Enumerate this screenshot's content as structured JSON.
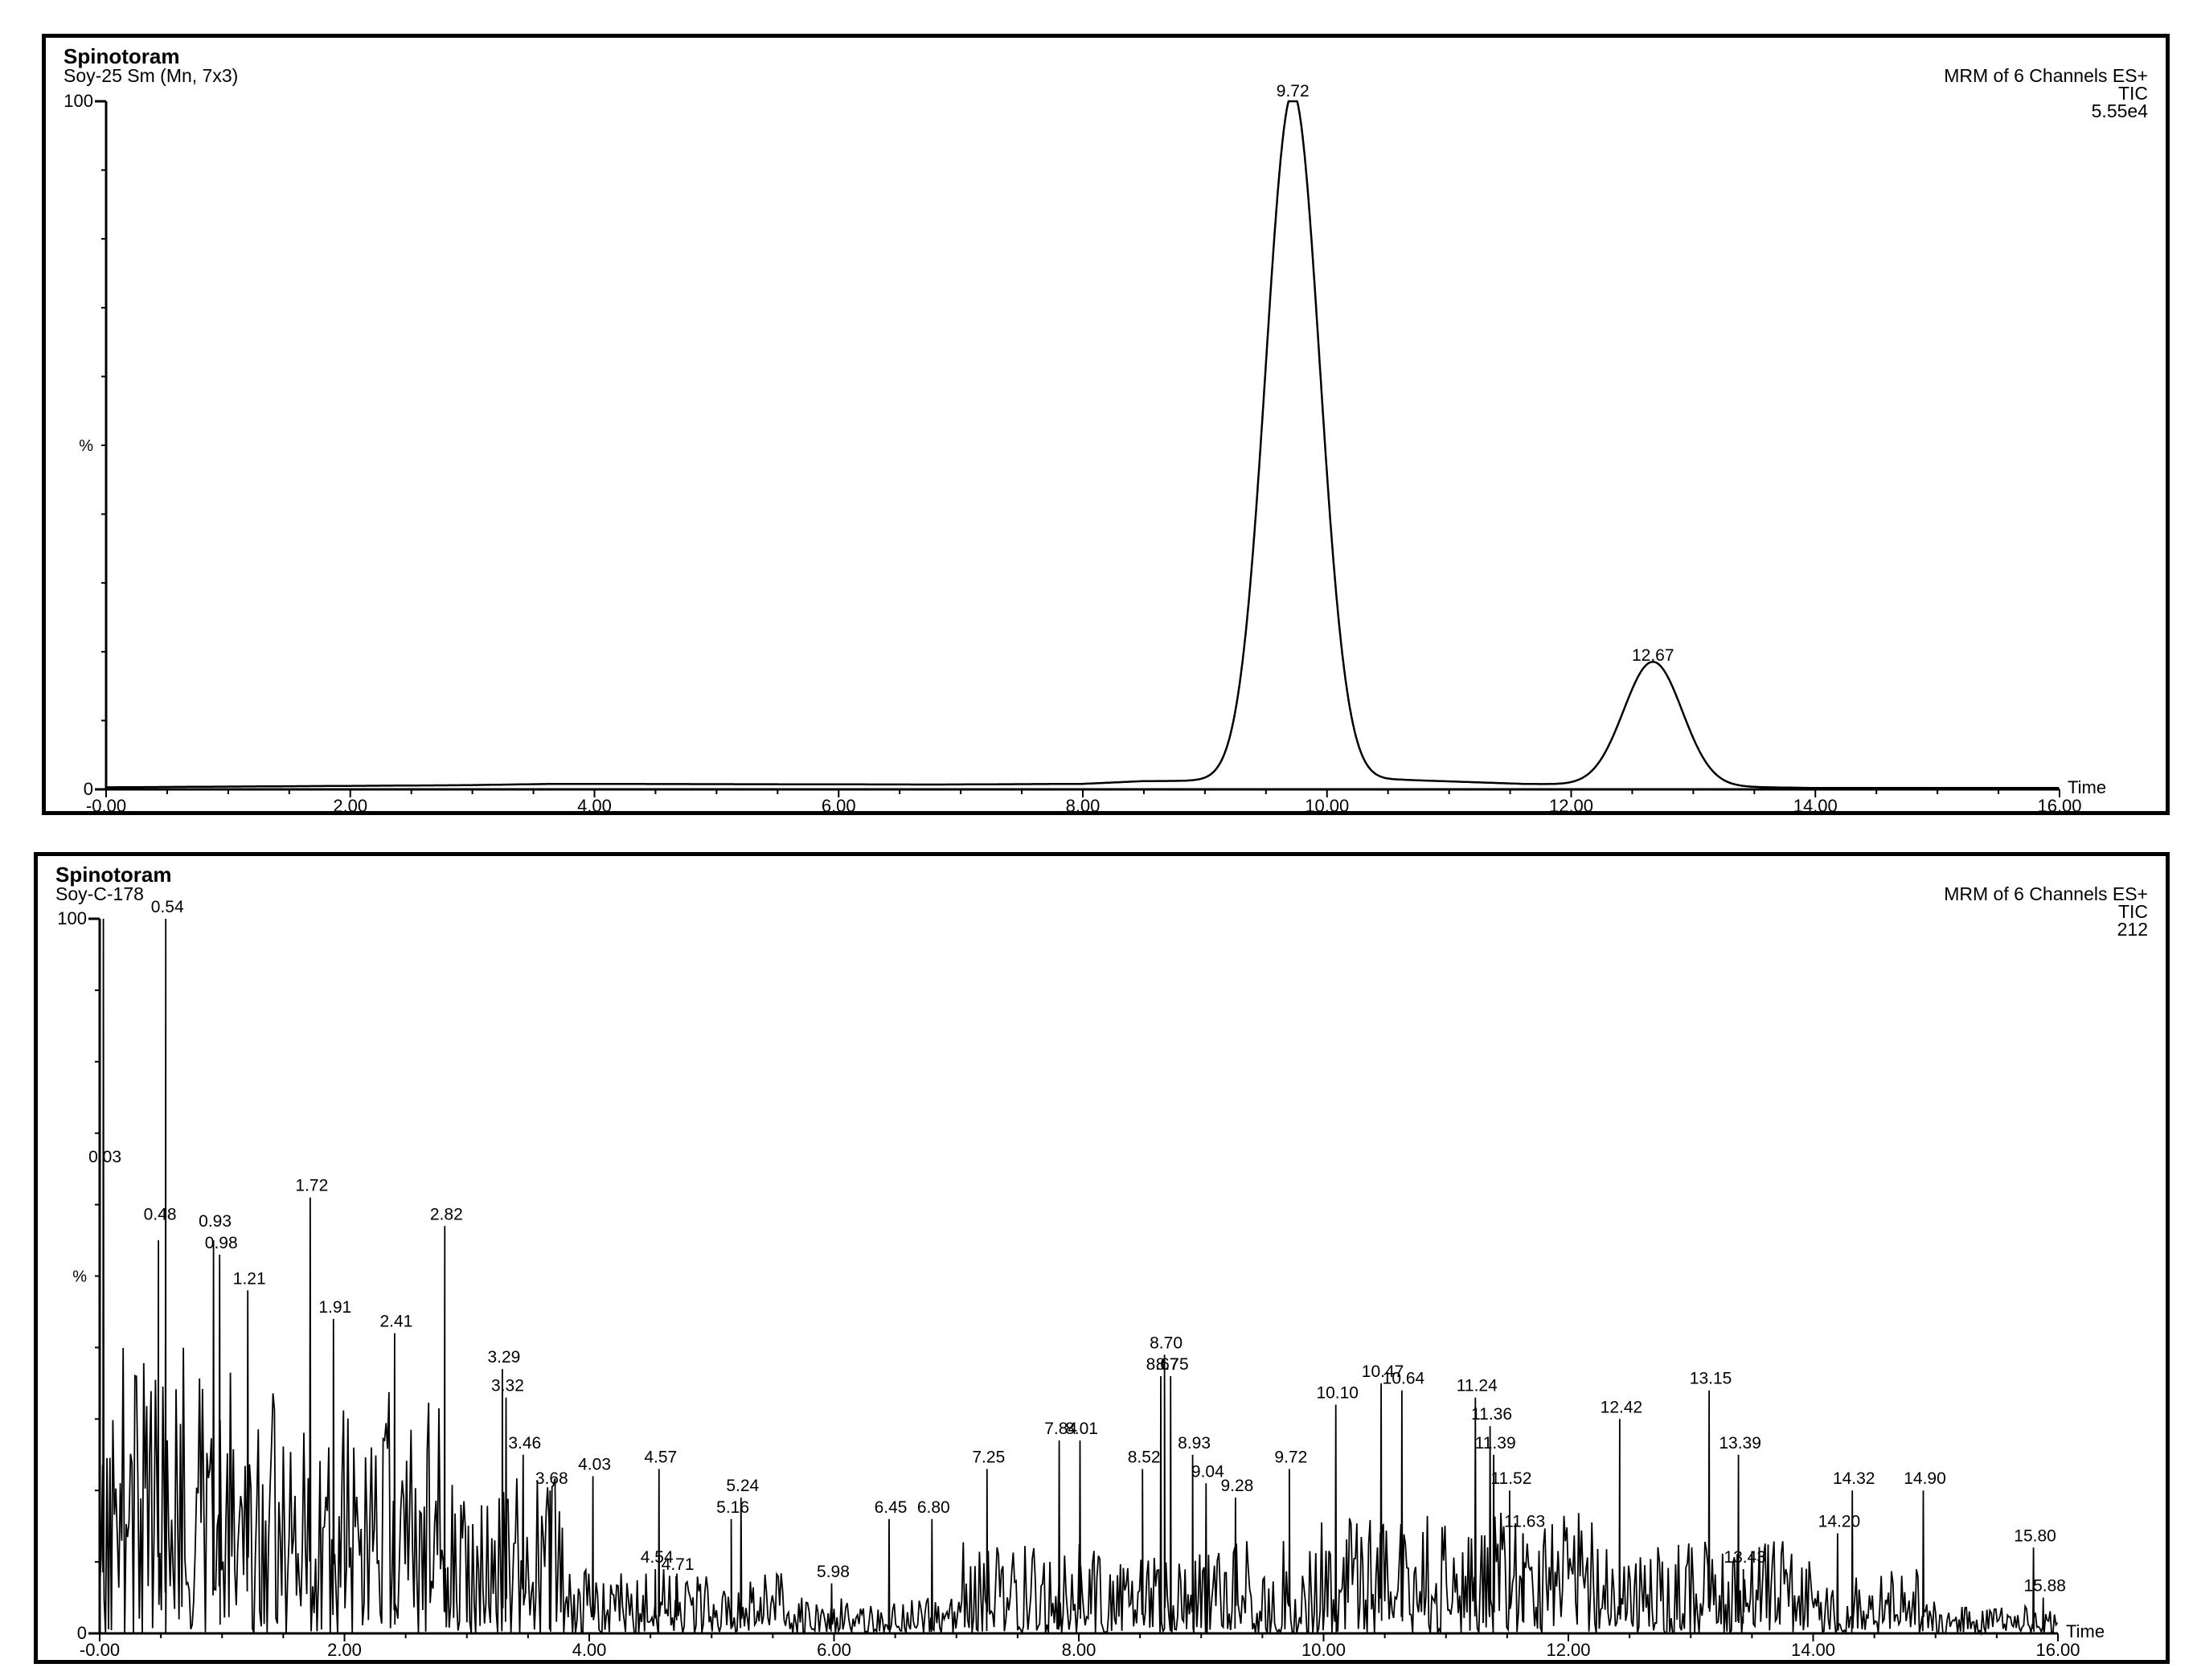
{
  "chart_data": [
    {
      "type": "line",
      "title": "Spinotoram",
      "subtitle": "Soy-25 Sm (Mn, 7x3)",
      "header_right": [
        "MRM of 6 Channels ES+",
        "TIC",
        "5.55e4"
      ],
      "ylabel": "%",
      "xlabel": "Time",
      "xlim": [
        0,
        16
      ],
      "ylim": [
        0,
        100
      ],
      "x_ticks": [
        "-0.00",
        "2.00",
        "4.00",
        "6.00",
        "8.00",
        "10.00",
        "12.00",
        "14.00",
        "16.00"
      ],
      "y_ticks": [
        "0",
        "100"
      ],
      "peaks": [
        {
          "time": 9.72,
          "height": 100,
          "width": 0.22
        },
        {
          "time": 12.67,
          "height": 18,
          "width": 0.24
        }
      ],
      "baseline": [
        [
          0.0,
          0.3
        ],
        [
          2.9,
          0.6
        ],
        [
          3.7,
          0.8
        ],
        [
          6.8,
          0.7
        ],
        [
          8.0,
          0.8
        ],
        [
          8.5,
          1.2
        ],
        [
          10.6,
          1.4
        ],
        [
          11.6,
          0.8
        ],
        [
          14.0,
          0.2
        ],
        [
          16.0,
          0.2
        ]
      ],
      "peak_labels": [
        {
          "text": "9.72",
          "x": 9.72,
          "y": 100
        },
        {
          "text": "12.67",
          "x": 12.67,
          "y": 18
        }
      ]
    },
    {
      "type": "line",
      "title": "Spinotoram",
      "subtitle": "Soy-C-178",
      "header_right": [
        "MRM of 6 Channels ES+",
        "TIC",
        "212"
      ],
      "ylabel": "%",
      "xlabel": "Time",
      "xlim": [
        0,
        16
      ],
      "ylim": [
        0,
        100
      ],
      "x_ticks": [
        "-0.00",
        "2.00",
        "4.00",
        "6.00",
        "8.00",
        "10.00",
        "12.00",
        "14.00",
        "16.00"
      ],
      "y_ticks": [
        "0",
        "100"
      ],
      "peaks": [
        {
          "time": 0.03,
          "height": 100
        },
        {
          "time": 0.48,
          "height": 55
        },
        {
          "time": 0.54,
          "height": 100
        },
        {
          "time": 0.93,
          "height": 55
        },
        {
          "time": 0.98,
          "height": 53
        },
        {
          "time": 1.21,
          "height": 48
        },
        {
          "time": 1.72,
          "height": 61
        },
        {
          "time": 1.91,
          "height": 44
        },
        {
          "time": 2.41,
          "height": 42
        },
        {
          "time": 2.82,
          "height": 57
        },
        {
          "time": 3.29,
          "height": 37
        },
        {
          "time": 3.32,
          "height": 33
        },
        {
          "time": 3.46,
          "height": 25
        },
        {
          "time": 3.68,
          "height": 20
        },
        {
          "time": 4.03,
          "height": 22
        },
        {
          "time": 4.54,
          "height": 9
        },
        {
          "time": 4.57,
          "height": 23
        },
        {
          "time": 4.71,
          "height": 8
        },
        {
          "time": 5.16,
          "height": 16
        },
        {
          "time": 5.24,
          "height": 19
        },
        {
          "time": 5.98,
          "height": 7
        },
        {
          "time": 6.45,
          "height": 16
        },
        {
          "time": 6.8,
          "height": 16
        },
        {
          "time": 7.25,
          "height": 23
        },
        {
          "time": 7.84,
          "height": 27
        },
        {
          "time": 8.01,
          "height": 27
        },
        {
          "time": 8.52,
          "height": 23
        },
        {
          "time": 8.67,
          "height": 36
        },
        {
          "time": 8.7,
          "height": 39
        },
        {
          "time": 8.75,
          "height": 36
        },
        {
          "time": 8.93,
          "height": 25
        },
        {
          "time": 9.04,
          "height": 21
        },
        {
          "time": 9.28,
          "height": 19
        },
        {
          "time": 9.72,
          "height": 23
        },
        {
          "time": 10.1,
          "height": 32
        },
        {
          "time": 10.47,
          "height": 35
        },
        {
          "time": 10.64,
          "height": 34
        },
        {
          "time": 11.24,
          "height": 33
        },
        {
          "time": 11.36,
          "height": 29
        },
        {
          "time": 11.39,
          "height": 25
        },
        {
          "time": 11.52,
          "height": 20
        },
        {
          "time": 11.63,
          "height": 14
        },
        {
          "time": 12.42,
          "height": 30
        },
        {
          "time": 13.15,
          "height": 34
        },
        {
          "time": 13.39,
          "height": 25
        },
        {
          "time": 13.43,
          "height": 9
        },
        {
          "time": 14.2,
          "height": 14
        },
        {
          "time": 14.32,
          "height": 20
        },
        {
          "time": 14.9,
          "height": 20
        },
        {
          "time": 15.8,
          "height": 12
        },
        {
          "time": 15.88,
          "height": 5
        }
      ],
      "peak_labels": [
        {
          "text": "0.03",
          "x": 0.03,
          "y": 65
        },
        {
          "text": "0.48",
          "x": 0.48,
          "y": 57
        },
        {
          "text": "0.54",
          "x": 0.54,
          "y": 100
        },
        {
          "text": "0.93",
          "x": 0.93,
          "y": 56
        },
        {
          "text": "0.98",
          "x": 0.98,
          "y": 53
        },
        {
          "text": "1.21",
          "x": 1.21,
          "y": 48
        },
        {
          "text": "1.72",
          "x": 1.72,
          "y": 61
        },
        {
          "text": "1.91",
          "x": 1.91,
          "y": 44
        },
        {
          "text": "2.41",
          "x": 2.41,
          "y": 42
        },
        {
          "text": "2.82",
          "x": 2.82,
          "y": 57
        },
        {
          "text": "3.29",
          "x": 3.29,
          "y": 37
        },
        {
          "text": "3.32",
          "x": 3.32,
          "y": 33
        },
        {
          "text": "3.46",
          "x": 3.46,
          "y": 25
        },
        {
          "text": "3.68",
          "x": 3.68,
          "y": 20
        },
        {
          "text": "4.03",
          "x": 4.03,
          "y": 22
        },
        {
          "text": "4.54",
          "x": 4.54,
          "y": 9
        },
        {
          "text": "4.57",
          "x": 4.57,
          "y": 23
        },
        {
          "text": "4.71",
          "x": 4.71,
          "y": 8
        },
        {
          "text": "5.16",
          "x": 5.16,
          "y": 16
        },
        {
          "text": "5.24",
          "x": 5.24,
          "y": 19
        },
        {
          "text": "5.98",
          "x": 5.98,
          "y": 7
        },
        {
          "text": "6.45",
          "x": 6.45,
          "y": 16
        },
        {
          "text": "6.80",
          "x": 6.8,
          "y": 16
        },
        {
          "text": "7.25",
          "x": 7.25,
          "y": 23
        },
        {
          "text": "7.84",
          "x": 7.84,
          "y": 27
        },
        {
          "text": "8.01",
          "x": 8.01,
          "y": 27
        },
        {
          "text": "8.52",
          "x": 8.52,
          "y": 23
        },
        {
          "text": "8.67",
          "x": 8.67,
          "y": 36
        },
        {
          "text": "8.70",
          "x": 8.7,
          "y": 39
        },
        {
          "text": "8.75",
          "x": 8.75,
          "y": 36
        },
        {
          "text": "8.93",
          "x": 8.93,
          "y": 25
        },
        {
          "text": "9.04",
          "x": 9.04,
          "y": 21
        },
        {
          "text": "9.28",
          "x": 9.28,
          "y": 19
        },
        {
          "text": "9.72",
          "x": 9.72,
          "y": 23
        },
        {
          "text": "10.10",
          "x": 10.1,
          "y": 32
        },
        {
          "text": "10.47",
          "x": 10.47,
          "y": 35
        },
        {
          "text": "10.64",
          "x": 10.64,
          "y": 34
        },
        {
          "text": "11.24",
          "x": 11.24,
          "y": 33
        },
        {
          "text": "11.36",
          "x": 11.36,
          "y": 29
        },
        {
          "text": "11.39",
          "x": 11.39,
          "y": 25
        },
        {
          "text": "11.52",
          "x": 11.52,
          "y": 20
        },
        {
          "text": "11.63",
          "x": 11.63,
          "y": 14
        },
        {
          "text": "12.42",
          "x": 12.42,
          "y": 30
        },
        {
          "text": "13.15",
          "x": 13.15,
          "y": 34
        },
        {
          "text": "13.39",
          "x": 13.39,
          "y": 25
        },
        {
          "text": "13.43",
          "x": 13.43,
          "y": 9
        },
        {
          "text": "14.20",
          "x": 14.2,
          "y": 14
        },
        {
          "text": "14.32",
          "x": 14.32,
          "y": 20
        },
        {
          "text": "14.90",
          "x": 14.9,
          "y": 20
        },
        {
          "text": "15.80",
          "x": 15.8,
          "y": 12
        },
        {
          "text": "15.88",
          "x": 15.88,
          "y": 5
        }
      ]
    }
  ]
}
